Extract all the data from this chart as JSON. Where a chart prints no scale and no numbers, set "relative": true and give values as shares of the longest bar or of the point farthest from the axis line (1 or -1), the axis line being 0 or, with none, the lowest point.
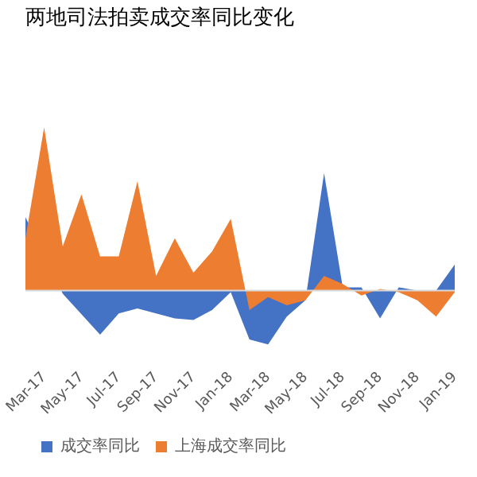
{
  "chart_data": {
    "type": "area",
    "title": "两地司法拍卖成交率同比变化",
    "relative": true,
    "legend": "bottom",
    "grid": false,
    "categories": [
      null,
      "Mar-17",
      null,
      "May-17",
      null,
      "Jul-17",
      null,
      "Sep-17",
      null,
      "Nov-17",
      null,
      "Jan-18",
      null,
      "Mar-18",
      null,
      "May-18",
      null,
      "Jul-18",
      null,
      "Sep-18",
      null,
      "Nov-18",
      null,
      "Jan-19"
    ],
    "series": [
      {
        "name": "成交率同比",
        "color": "#4472c4",
        "values": [
          0.45,
          null,
          -0.02,
          null,
          -0.27,
          -0.14,
          -0.11,
          -0.14,
          -0.17,
          -0.18,
          -0.12,
          -0.01,
          -0.3,
          -0.33,
          -0.16,
          -0.06,
          0.72,
          0.02,
          0.02,
          -0.17,
          0.02,
          0,
          0,
          0.16
        ]
      },
      {
        "name": "上海成交率同比",
        "color": "#ed7d31",
        "values": [
          0.32,
          1,
          0.27,
          0.59,
          0.21,
          0.21,
          0.67,
          0.09,
          0.32,
          0.11,
          0.24,
          0.44,
          -0.12,
          -0.04,
          -0.09,
          -0.06,
          0.09,
          0.04,
          -0.03,
          0.01,
          -0.01,
          -0.06,
          -0.16,
          -0.01
        ]
      }
    ]
  }
}
